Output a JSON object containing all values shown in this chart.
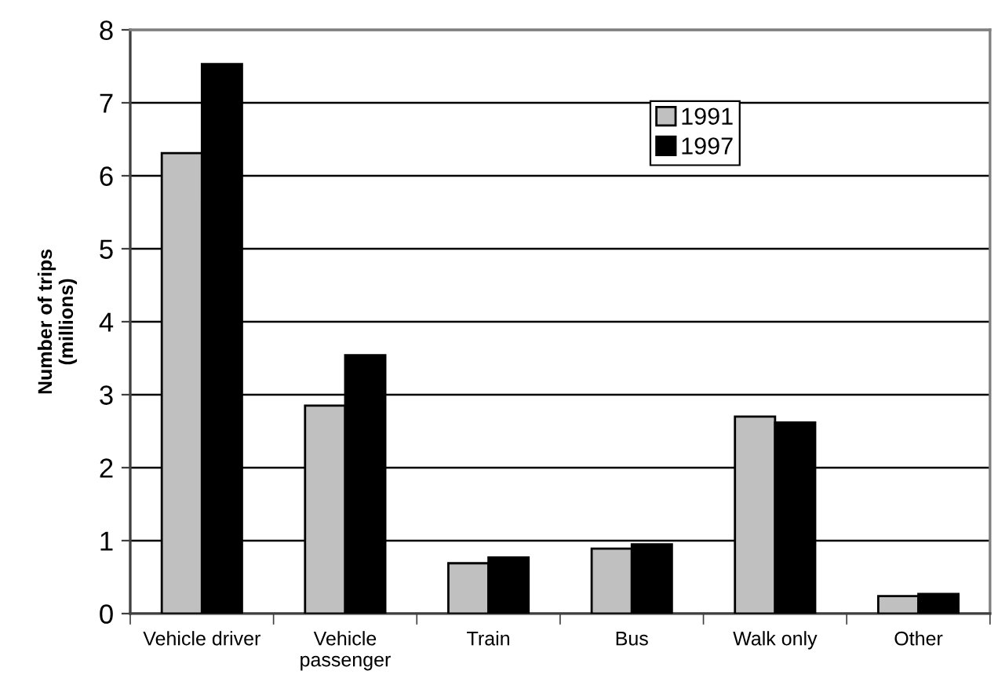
{
  "chart_data": {
    "type": "bar",
    "ylabel": "Number of trips\n(millions)",
    "categories": [
      "Vehicle driver",
      "Vehicle\npassenger",
      "Train",
      "Bus",
      "Walk only",
      "Other"
    ],
    "series": [
      {
        "name": "1991",
        "color": "#c0c0c0",
        "values": [
          6.31,
          2.85,
          0.69,
          0.89,
          2.7,
          0.24
        ]
      },
      {
        "name": "1997",
        "color": "#000000",
        "values": [
          7.53,
          3.54,
          0.77,
          0.95,
          2.62,
          0.27
        ]
      }
    ],
    "ylim": [
      0,
      8
    ],
    "yticks": [
      0,
      1,
      2,
      3,
      4,
      5,
      6,
      7,
      8
    ],
    "grid": "y",
    "legend": "top right"
  }
}
